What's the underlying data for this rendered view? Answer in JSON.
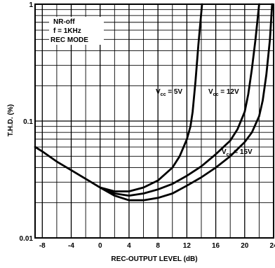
{
  "chart_data": {
    "type": "line",
    "title": "",
    "xlabel": "REC-OUTPUT LEVEL (dB)",
    "ylabel": "T.H.D. (%)",
    "xlim": [
      -9,
      24
    ],
    "ylim": [
      0.01,
      1
    ],
    "y_scale": "log",
    "grid": true,
    "x_ticks": [
      "-8",
      "-4",
      "0",
      "4",
      "8",
      "12",
      "16",
      "20",
      "24"
    ],
    "y_ticks": [
      "0.01",
      "0.1",
      "1"
    ],
    "conditions": [
      "NR-off",
      "f = 1KHz",
      "REC MODE"
    ],
    "series": [
      {
        "name": "Vcc = 5V",
        "label_main": "V",
        "label_sub": "cc",
        "label_tail": " = 5V",
        "x": [
          -9,
          -8,
          -6,
          -4,
          -2,
          0,
          2,
          4,
          6,
          8,
          10,
          11,
          12,
          12.5,
          12.8,
          13.2,
          13.6,
          14.1
        ],
        "y": [
          0.06,
          0.055,
          0.045,
          0.038,
          0.032,
          0.027,
          0.025,
          0.025,
          0.027,
          0.031,
          0.04,
          0.05,
          0.07,
          0.09,
          0.12,
          0.22,
          0.45,
          1.0
        ]
      },
      {
        "name": "Vcc = 12V",
        "label_main": "V",
        "label_sub": "cc",
        "label_tail": " = 12V",
        "x": [
          0,
          2,
          4,
          6,
          8,
          10,
          12,
          14,
          16,
          18,
          19,
          20,
          20.5,
          21,
          21.5,
          22
        ],
        "y": [
          0.027,
          0.024,
          0.023,
          0.024,
          0.026,
          0.029,
          0.034,
          0.041,
          0.052,
          0.068,
          0.085,
          0.12,
          0.17,
          0.28,
          0.5,
          1.0
        ]
      },
      {
        "name": "Vcc = 15V",
        "label_main": "V",
        "label_sub": "cc",
        "label_tail": " = 15V",
        "x": [
          0,
          2,
          4,
          6,
          8,
          10,
          12,
          14,
          16,
          18,
          20,
          21,
          22,
          22.5,
          23,
          23.5,
          23.8
        ],
        "y": [
          0.027,
          0.023,
          0.021,
          0.021,
          0.022,
          0.024,
          0.028,
          0.033,
          0.04,
          0.05,
          0.066,
          0.08,
          0.11,
          0.15,
          0.25,
          0.5,
          1.0
        ]
      }
    ]
  }
}
